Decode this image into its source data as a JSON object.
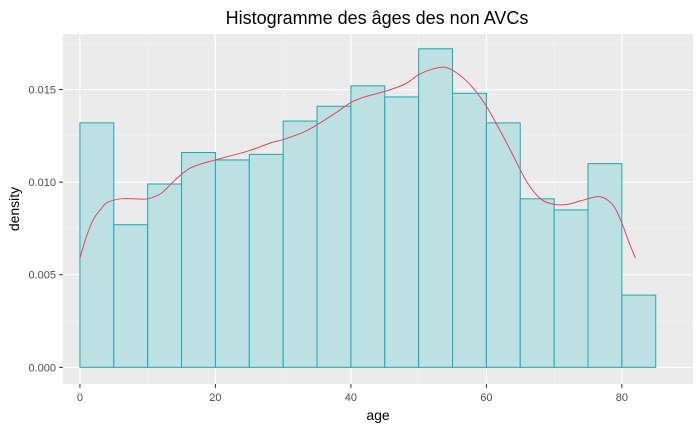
{
  "chart_data": {
    "type": "histogram",
    "title": "Histogramme des âges des non AVCs",
    "xlabel": "age",
    "ylabel": "density",
    "xlim": [
      -2.5,
      90.5
    ],
    "ylim": [
      -0.0009,
      0.018
    ],
    "xticks": [
      0,
      20,
      40,
      60,
      80
    ],
    "xtick_labels": [
      "0",
      "20",
      "40",
      "60",
      "80"
    ],
    "yticks": [
      0,
      0.005,
      0.01,
      0.015
    ],
    "ytick_labels": [
      "0.000",
      "0.005",
      "0.010",
      "0.015"
    ],
    "grid": true,
    "bin_width": 5,
    "bins": [
      {
        "x0": 0,
        "x1": 5,
        "density": 0.0132
      },
      {
        "x0": 5,
        "x1": 10,
        "density": 0.0077
      },
      {
        "x0": 10,
        "x1": 15,
        "density": 0.0099
      },
      {
        "x0": 15,
        "x1": 20,
        "density": 0.0116
      },
      {
        "x0": 20,
        "x1": 25,
        "density": 0.0112
      },
      {
        "x0": 25,
        "x1": 30,
        "density": 0.0115
      },
      {
        "x0": 30,
        "x1": 35,
        "density": 0.0133
      },
      {
        "x0": 35,
        "x1": 40,
        "density": 0.0141
      },
      {
        "x0": 40,
        "x1": 45,
        "density": 0.0152
      },
      {
        "x0": 45,
        "x1": 50,
        "density": 0.0146
      },
      {
        "x0": 50,
        "x1": 55,
        "density": 0.0172
      },
      {
        "x0": 55,
        "x1": 60,
        "density": 0.0148
      },
      {
        "x0": 60,
        "x1": 65,
        "density": 0.0132
      },
      {
        "x0": 65,
        "x1": 70,
        "density": 0.0091
      },
      {
        "x0": 70,
        "x1": 75,
        "density": 0.0085
      },
      {
        "x0": 75,
        "x1": 80,
        "density": 0.011
      },
      {
        "x0": 80,
        "x1": 85,
        "density": 0.0039
      }
    ],
    "density_curve": [
      [
        0,
        0.0059
      ],
      [
        1,
        0.0071
      ],
      [
        2,
        0.008
      ],
      [
        3,
        0.0085
      ],
      [
        4,
        0.0089
      ],
      [
        6,
        0.0091
      ],
      [
        8,
        0.0091
      ],
      [
        10,
        0.0091
      ],
      [
        12,
        0.0094
      ],
      [
        14,
        0.0101
      ],
      [
        16,
        0.0107
      ],
      [
        18,
        0.011
      ],
      [
        20,
        0.0112
      ],
      [
        22,
        0.0114
      ],
      [
        25,
        0.0117
      ],
      [
        28,
        0.0121
      ],
      [
        30,
        0.0123
      ],
      [
        33,
        0.0127
      ],
      [
        35,
        0.0131
      ],
      [
        38,
        0.0138
      ],
      [
        40,
        0.0143
      ],
      [
        42,
        0.0146
      ],
      [
        45,
        0.0149
      ],
      [
        48,
        0.0153
      ],
      [
        50,
        0.0158
      ],
      [
        52,
        0.0161
      ],
      [
        54,
        0.0162
      ],
      [
        56,
        0.0158
      ],
      [
        58,
        0.0151
      ],
      [
        60,
        0.0141
      ],
      [
        62,
        0.0128
      ],
      [
        64,
        0.0114
      ],
      [
        66,
        0.01
      ],
      [
        68,
        0.0091
      ],
      [
        70,
        0.0088
      ],
      [
        72,
        0.0088
      ],
      [
        74,
        0.009
      ],
      [
        76,
        0.0092
      ],
      [
        77,
        0.0092
      ],
      [
        78,
        0.009
      ],
      [
        79,
        0.0086
      ],
      [
        80,
        0.0078
      ],
      [
        81,
        0.0068
      ],
      [
        82,
        0.0059
      ]
    ],
    "colors": {
      "bar_fill": "#bde0e2",
      "bar_stroke": "#1fa7b2",
      "density_line": "#e0475f",
      "panel_background": "#ebebeb",
      "grid_major": "#ffffff",
      "grid_minor": "#f5f5f5"
    }
  }
}
